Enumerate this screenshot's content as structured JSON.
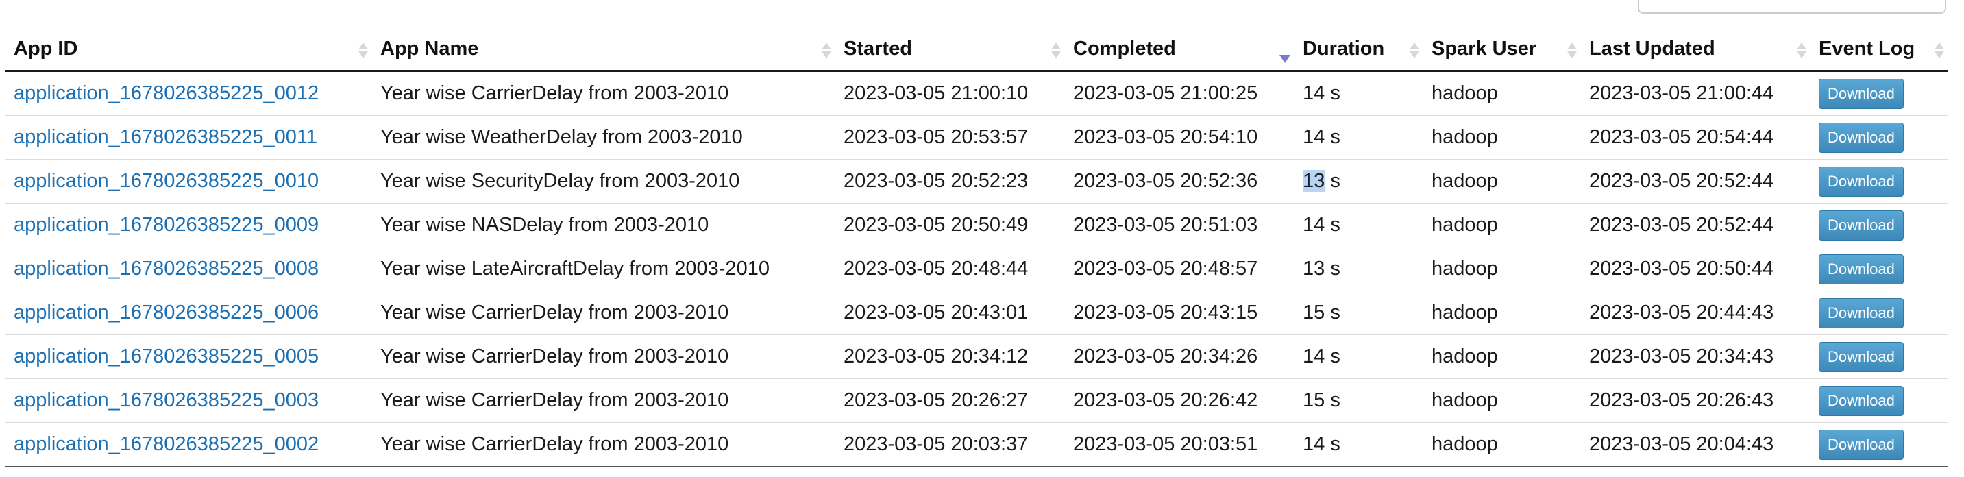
{
  "columns": [
    "App ID",
    "App Name",
    "Started",
    "Completed",
    "Duration",
    "Spark User",
    "Last Updated",
    "Event Log"
  ],
  "rows": [
    {
      "app_id": "application_1678026385225_0012",
      "app_name": "Year wise CarrierDelay from 2003-2010",
      "started": "2023-03-05 21:00:10",
      "completed": "2023-03-05 21:00:25",
      "duration_num": "14",
      "duration_unit": " s",
      "user": "hadoop",
      "last_updated": "2023-03-05 21:00:44",
      "action": "Download"
    },
    {
      "app_id": "application_1678026385225_0011",
      "app_name": "Year wise WeatherDelay from 2003-2010",
      "started": "2023-03-05 20:53:57",
      "completed": "2023-03-05 20:54:10",
      "duration_num": "14",
      "duration_unit": " s",
      "user": "hadoop",
      "last_updated": "2023-03-05 20:54:44",
      "action": "Download"
    },
    {
      "app_id": "application_1678026385225_0010",
      "app_name": "Year wise SecurityDelay from 2003-2010",
      "started": "2023-03-05 20:52:23",
      "completed": "2023-03-05 20:52:36",
      "duration_num": "13",
      "duration_unit": " s",
      "user": "hadoop",
      "last_updated": "2023-03-05 20:52:44",
      "action": "Download",
      "selected_text": "13"
    },
    {
      "app_id": "application_1678026385225_0009",
      "app_name": "Year wise NASDelay from 2003-2010",
      "started": "2023-03-05 20:50:49",
      "completed": "2023-03-05 20:51:03",
      "duration_num": "14",
      "duration_unit": " s",
      "user": "hadoop",
      "last_updated": "2023-03-05 20:52:44",
      "action": "Download"
    },
    {
      "app_id": "application_1678026385225_0008",
      "app_name": "Year wise LateAircraftDelay from 2003-2010",
      "started": "2023-03-05 20:48:44",
      "completed": "2023-03-05 20:48:57",
      "duration_num": "13",
      "duration_unit": " s",
      "user": "hadoop",
      "last_updated": "2023-03-05 20:50:44",
      "action": "Download"
    },
    {
      "app_id": "application_1678026385225_0006",
      "app_name": "Year wise CarrierDelay from 2003-2010",
      "started": "2023-03-05 20:43:01",
      "completed": "2023-03-05 20:43:15",
      "duration_num": "15",
      "duration_unit": " s",
      "user": "hadoop",
      "last_updated": "2023-03-05 20:44:43",
      "action": "Download"
    },
    {
      "app_id": "application_1678026385225_0005",
      "app_name": "Year wise CarrierDelay from 2003-2010",
      "started": "2023-03-05 20:34:12",
      "completed": "2023-03-05 20:34:26",
      "duration_num": "14",
      "duration_unit": " s",
      "user": "hadoop",
      "last_updated": "2023-03-05 20:34:43",
      "action": "Download"
    },
    {
      "app_id": "application_1678026385225_0003",
      "app_name": "Year wise CarrierDelay from 2003-2010",
      "started": "2023-03-05 20:26:27",
      "completed": "2023-03-05 20:26:42",
      "duration_num": "15",
      "duration_unit": " s",
      "user": "hadoop",
      "last_updated": "2023-03-05 20:26:43",
      "action": "Download"
    },
    {
      "app_id": "application_1678026385225_0002",
      "app_name": "Year wise CarrierDelay from 2003-2010",
      "started": "2023-03-05 20:03:37",
      "completed": "2023-03-05 20:03:51",
      "duration_num": "14",
      "duration_unit": " s",
      "user": "hadoop",
      "last_updated": "2023-03-05 20:04:43",
      "action": "Download"
    }
  ],
  "sort": {
    "column": "Completed",
    "direction": "descending"
  },
  "colors": {
    "link": "#1b6fb3",
    "button": "#4897c4",
    "sort_active": "#7a7ad6",
    "sort_inactive": "#d7d7d7",
    "selection": "#b9d4f4"
  },
  "icons": {
    "sort_inactive": "sort-both-icon",
    "sort_active": "sort-descending-icon"
  }
}
